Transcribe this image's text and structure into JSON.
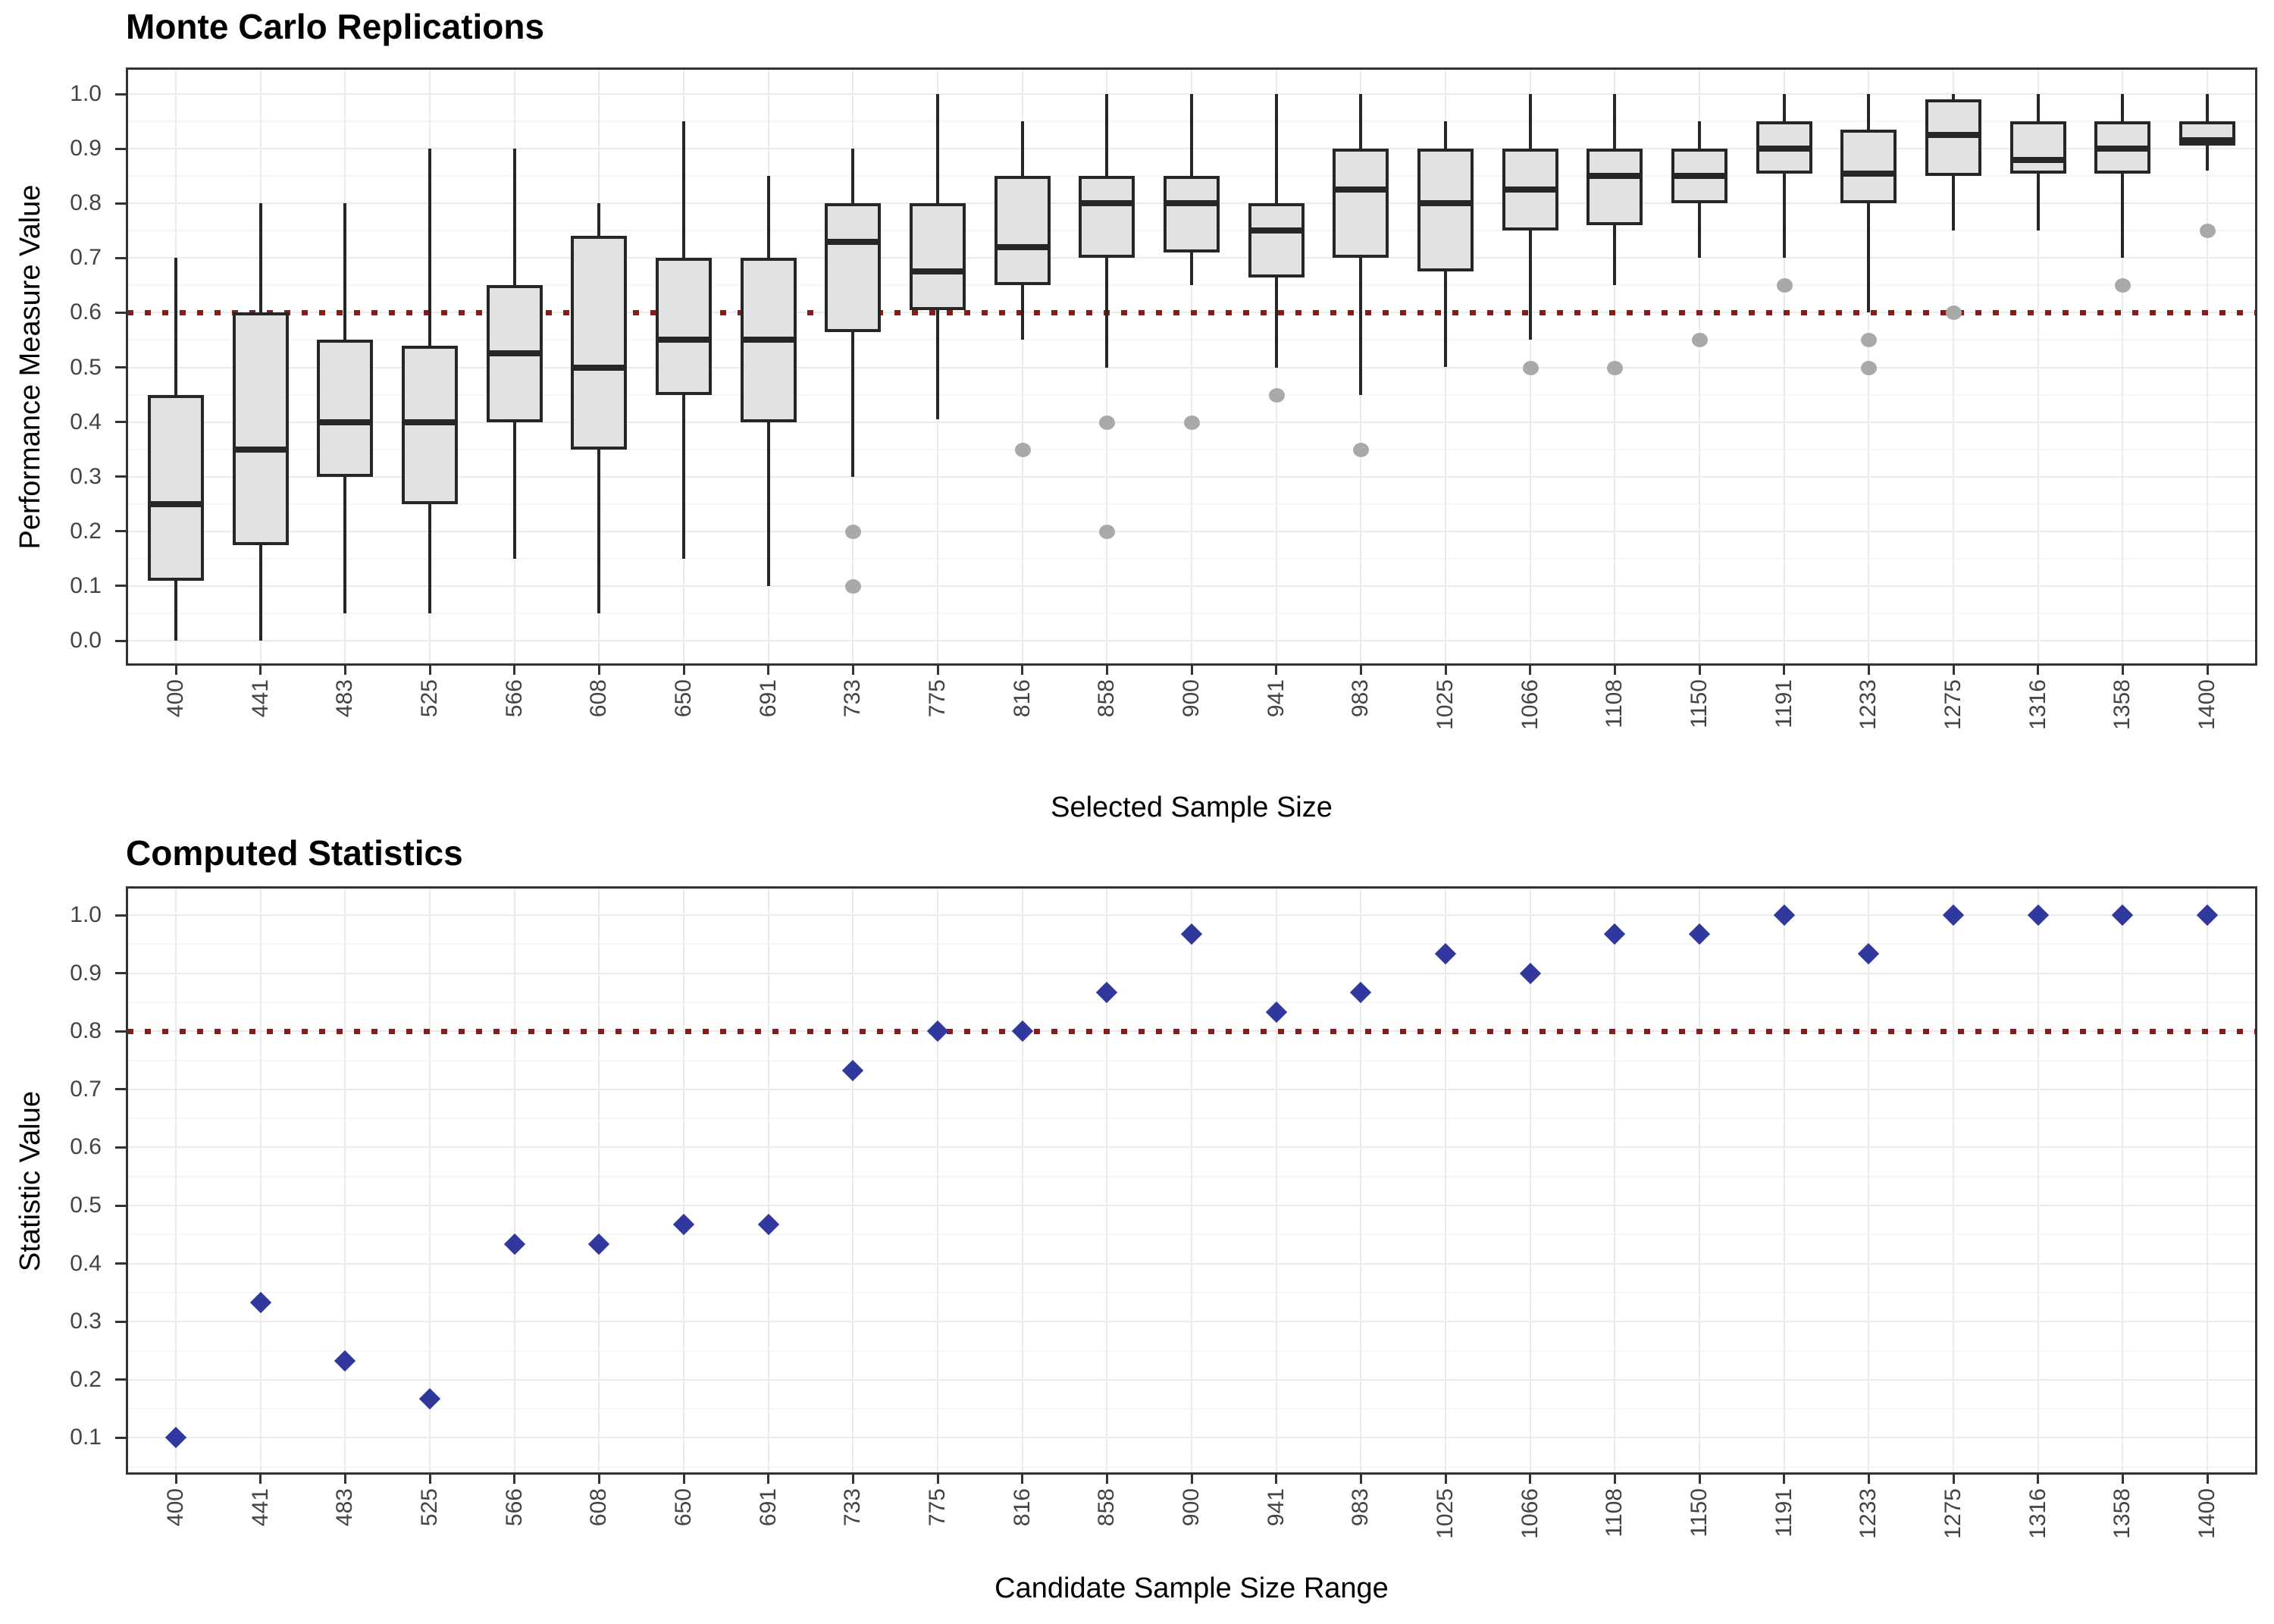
{
  "chart_data": [
    {
      "type": "boxplot",
      "title": "Monte Carlo Replications",
      "xlabel": "Selected Sample Size",
      "ylabel": "Performance Measure Value",
      "legend": "none",
      "grid": "on",
      "ylim": [
        -0.045,
        1.045
      ],
      "y_tick_values": [
        0.0,
        0.1,
        0.2,
        0.3,
        0.4,
        0.5,
        0.6,
        0.7,
        0.8,
        0.9,
        1.0
      ],
      "y_tick_labels": [
        "0.0",
        "0.1",
        "0.2",
        "0.3",
        "0.4",
        "0.5",
        "0.6",
        "0.7",
        "0.8",
        "0.9",
        "1.0"
      ],
      "threshold": 0.6,
      "threshold_style": "dotted",
      "categories": [
        400,
        441,
        483,
        525,
        566,
        608,
        650,
        691,
        733,
        775,
        816,
        858,
        900,
        941,
        983,
        1025,
        1066,
        1108,
        1150,
        1191,
        1233,
        1275,
        1316,
        1358,
        1400
      ],
      "boxes": [
        {
          "x": 400,
          "low": 0.0,
          "q1": 0.11,
          "median": 0.25,
          "q3": 0.45,
          "high": 0.7,
          "outliers": []
        },
        {
          "x": 441,
          "low": 0.0,
          "q1": 0.175,
          "median": 0.35,
          "q3": 0.6,
          "high": 0.8,
          "outliers": []
        },
        {
          "x": 483,
          "low": 0.05,
          "q1": 0.3,
          "median": 0.4,
          "q3": 0.55,
          "high": 0.8,
          "outliers": []
        },
        {
          "x": 525,
          "low": 0.05,
          "q1": 0.25,
          "median": 0.4,
          "q3": 0.54,
          "high": 0.9,
          "outliers": []
        },
        {
          "x": 566,
          "low": 0.15,
          "q1": 0.4,
          "median": 0.525,
          "q3": 0.65,
          "high": 0.9,
          "outliers": []
        },
        {
          "x": 608,
          "low": 0.05,
          "q1": 0.35,
          "median": 0.5,
          "q3": 0.74,
          "high": 0.8,
          "outliers": []
        },
        {
          "x": 650,
          "low": 0.15,
          "q1": 0.45,
          "median": 0.55,
          "q3": 0.7,
          "high": 0.95,
          "outliers": []
        },
        {
          "x": 691,
          "low": 0.1,
          "q1": 0.4,
          "median": 0.55,
          "q3": 0.7,
          "high": 0.85,
          "outliers": []
        },
        {
          "x": 733,
          "low": 0.3,
          "q1": 0.565,
          "median": 0.73,
          "q3": 0.8,
          "high": 0.9,
          "outliers": [
            0.2,
            0.1
          ]
        },
        {
          "x": 775,
          "low": 0.405,
          "q1": 0.605,
          "median": 0.675,
          "q3": 0.8,
          "high": 1.0,
          "outliers": []
        },
        {
          "x": 816,
          "low": 0.55,
          "q1": 0.65,
          "median": 0.72,
          "q3": 0.85,
          "high": 0.95,
          "outliers": [
            0.35
          ]
        },
        {
          "x": 858,
          "low": 0.5,
          "q1": 0.7,
          "median": 0.8,
          "q3": 0.85,
          "high": 1.0,
          "outliers": [
            0.4,
            0.2
          ]
        },
        {
          "x": 900,
          "low": 0.65,
          "q1": 0.71,
          "median": 0.8,
          "q3": 0.85,
          "high": 1.0,
          "outliers": [
            0.4
          ]
        },
        {
          "x": 941,
          "low": 0.5,
          "q1": 0.665,
          "median": 0.75,
          "q3": 0.8,
          "high": 1.0,
          "outliers": [
            0.45
          ]
        },
        {
          "x": 983,
          "low": 0.45,
          "q1": 0.7,
          "median": 0.825,
          "q3": 0.9,
          "high": 1.0,
          "outliers": [
            0.35
          ]
        },
        {
          "x": 1025,
          "low": 0.5,
          "q1": 0.675,
          "median": 0.8,
          "q3": 0.9,
          "high": 0.95,
          "outliers": []
        },
        {
          "x": 1066,
          "low": 0.55,
          "q1": 0.75,
          "median": 0.825,
          "q3": 0.9,
          "high": 1.0,
          "outliers": [
            0.5
          ]
        },
        {
          "x": 1108,
          "low": 0.65,
          "q1": 0.76,
          "median": 0.85,
          "q3": 0.9,
          "high": 1.0,
          "outliers": [
            0.5
          ]
        },
        {
          "x": 1150,
          "low": 0.7,
          "q1": 0.8,
          "median": 0.85,
          "q3": 0.9,
          "high": 0.95,
          "outliers": [
            0.55
          ]
        },
        {
          "x": 1191,
          "low": 0.7,
          "q1": 0.855,
          "median": 0.9,
          "q3": 0.95,
          "high": 1.0,
          "outliers": [
            0.65
          ]
        },
        {
          "x": 1233,
          "low": 0.6,
          "q1": 0.8,
          "median": 0.855,
          "q3": 0.935,
          "high": 1.0,
          "outliers": [
            0.55,
            0.5
          ]
        },
        {
          "x": 1275,
          "low": 0.75,
          "q1": 0.85,
          "median": 0.925,
          "q3": 0.99,
          "high": 1.0,
          "outliers": [
            0.6
          ]
        },
        {
          "x": 1316,
          "low": 0.75,
          "q1": 0.855,
          "median": 0.88,
          "q3": 0.95,
          "high": 1.0,
          "outliers": []
        },
        {
          "x": 1358,
          "low": 0.7,
          "q1": 0.855,
          "median": 0.9,
          "q3": 0.95,
          "high": 1.0,
          "outliers": [
            0.65
          ]
        },
        {
          "x": 1400,
          "low": 0.86,
          "q1": 0.905,
          "median": 0.915,
          "q3": 0.95,
          "high": 1.0,
          "outliers": [
            0.75
          ]
        }
      ]
    },
    {
      "type": "scatter",
      "title": "Computed Statistics",
      "xlabel": "Candidate Sample Size Range",
      "ylabel": "Statistic Value",
      "marker": "diamond",
      "legend": "none",
      "grid": "on",
      "ylim": [
        0.04,
        1.045
      ],
      "y_tick_values": [
        0.1,
        0.2,
        0.3,
        0.4,
        0.5,
        0.6,
        0.7,
        0.8,
        0.9,
        1.0
      ],
      "y_tick_labels": [
        "0.1",
        "0.2",
        "0.3",
        "0.4",
        "0.5",
        "0.6",
        "0.7",
        "0.8",
        "0.9",
        "1.0"
      ],
      "threshold": 0.8,
      "threshold_style": "dotted",
      "categories": [
        400,
        441,
        483,
        525,
        566,
        608,
        650,
        691,
        733,
        775,
        816,
        858,
        900,
        941,
        983,
        1025,
        1066,
        1108,
        1150,
        1191,
        1233,
        1275,
        1316,
        1358,
        1400
      ],
      "values": [
        0.1,
        0.333,
        0.233,
        0.167,
        0.433,
        0.433,
        0.467,
        0.467,
        0.733,
        0.8,
        0.8,
        0.867,
        0.967,
        0.833,
        0.867,
        0.933,
        0.9,
        0.967,
        0.967,
        1.0,
        0.933,
        1.0,
        1.0,
        1.0,
        1.0
      ]
    }
  ],
  "colors": {
    "box_fill": "#E2E2E2",
    "box_stroke": "#262626",
    "whisker": "#262626",
    "outlier": "#A9A9A9",
    "threshold_line": "#8B1A1A",
    "diamond": "#30379D",
    "grid_major": "#EBEBEB",
    "grid_minor": "#F6F6F6",
    "panel_border": "#333333",
    "tick_mark": "#333333",
    "tick_label": "#444444",
    "title_text": "#000000"
  }
}
